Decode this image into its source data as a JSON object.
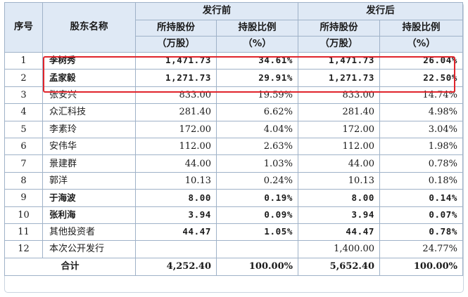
{
  "headers": {
    "seq": "序号",
    "name": "股东名称",
    "before": "发行前",
    "after": "发行后",
    "shares": "所持股份",
    "shares_unit": "（万股）",
    "ratio": "持股比例",
    "ratio_unit": "（%）"
  },
  "rows": [
    {
      "no": "1",
      "name": "李树秀",
      "before_shares": "1,471.73",
      "before_ratio": "34.61%",
      "after_shares": "1,471.73",
      "after_ratio": "26.04%",
      "bold": true
    },
    {
      "no": "2",
      "name": "孟家毅",
      "before_shares": "1,271.73",
      "before_ratio": "29.91%",
      "after_shares": "1,271.73",
      "after_ratio": "22.50%",
      "bold": true
    },
    {
      "no": "3",
      "name": "张安兴",
      "before_shares": "833.00",
      "before_ratio": "19.59%",
      "after_shares": "833.00",
      "after_ratio": "14.74%",
      "bold": false
    },
    {
      "no": "4",
      "name": "众汇科技",
      "before_shares": "281.40",
      "before_ratio": "6.62%",
      "after_shares": "281.40",
      "after_ratio": "4.98%",
      "bold": false
    },
    {
      "no": "5",
      "name": "李素玲",
      "before_shares": "172.00",
      "before_ratio": "4.04%",
      "after_shares": "172.00",
      "after_ratio": "3.04%",
      "bold": false
    },
    {
      "no": "6",
      "name": "安伟华",
      "before_shares": "112.00",
      "before_ratio": "2.63%",
      "after_shares": "112.00",
      "after_ratio": "1.98%",
      "bold": false
    },
    {
      "no": "7",
      "name": "景建群",
      "before_shares": "44.00",
      "before_ratio": "1.03%",
      "after_shares": "44.00",
      "after_ratio": "0.78%",
      "bold": false
    },
    {
      "no": "8",
      "name": "郭洋",
      "before_shares": "10.13",
      "before_ratio": "0.24%",
      "after_shares": "10.13",
      "after_ratio": "0.18%",
      "bold": false
    },
    {
      "no": "9",
      "name": "于海波",
      "before_shares": "8.00",
      "before_ratio": "0.19%",
      "after_shares": "8.00",
      "after_ratio": "0.14%",
      "bold": true
    },
    {
      "no": "10",
      "name": "张利海",
      "before_shares": "3.94",
      "before_ratio": "0.09%",
      "after_shares": "3.94",
      "after_ratio": "0.07%",
      "bold": true
    },
    {
      "no": "11",
      "name": "其他投资者",
      "before_shares": "44.47",
      "before_ratio": "1.05%",
      "after_shares": "44.47",
      "after_ratio": "0.78%",
      "bold": "mixed"
    },
    {
      "no": "12",
      "name": "本次公开发行",
      "before_shares": "",
      "before_ratio": "",
      "after_shares": "1,400.00",
      "after_ratio": "24.77%",
      "bold": false
    }
  ],
  "total": {
    "label": "合计",
    "before_shares": "4,252.40",
    "before_ratio": "100.00%",
    "after_shares": "5,652.40",
    "after_ratio": "100.00%"
  },
  "colors": {
    "header_bg": "#dfe9f5",
    "grid": "#9fb2c8",
    "highlight": "#e0242b"
  }
}
